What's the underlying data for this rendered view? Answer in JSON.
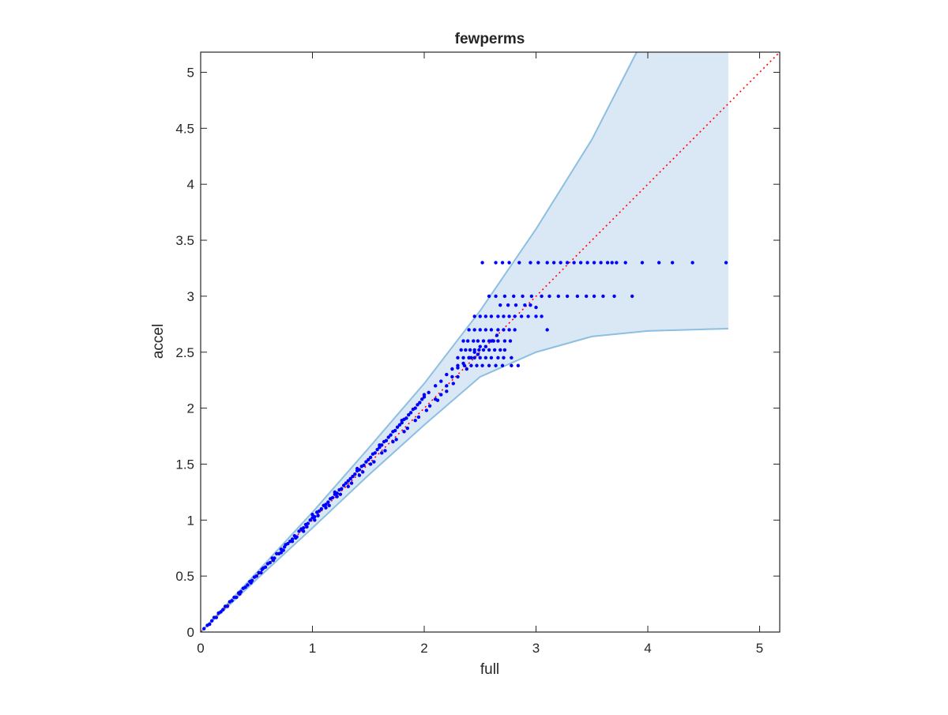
{
  "chart_data": {
    "type": "scatter",
    "title": "fewperms",
    "xlabel": "full",
    "ylabel": "accel",
    "xlim": [
      0,
      5.18
    ],
    "ylim": [
      0,
      5.18
    ],
    "x_ticks": [
      0,
      1,
      2,
      3,
      4,
      5
    ],
    "y_ticks": [
      0,
      0.5,
      1,
      1.5,
      2,
      2.5,
      3,
      3.5,
      4,
      4.5,
      5
    ],
    "x_tick_labels": [
      "0",
      "1",
      "2",
      "3",
      "4",
      "5"
    ],
    "y_tick_labels": [
      "0",
      "0.5",
      "1",
      "1.5",
      "2",
      "2.5",
      "3",
      "3.5",
      "4",
      "4.5",
      "5"
    ],
    "grid": false,
    "colors": {
      "points": "#0000ff",
      "band_fill": "#d9e8f4",
      "band_edge": "#8cbfe0",
      "reference_line": "#ff0000",
      "axes": "#262626"
    },
    "band": {
      "upper": [
        [
          0,
          0
        ],
        [
          0.5,
          0.53
        ],
        [
          1,
          1.07
        ],
        [
          1.5,
          1.64
        ],
        [
          2,
          2.22
        ],
        [
          2.5,
          2.87
        ],
        [
          3,
          3.6
        ],
        [
          3.5,
          4.4
        ],
        [
          3.9,
          5.18
        ]
      ],
      "upper_cap_x": 4.72,
      "lower": [
        [
          0,
          0
        ],
        [
          0.5,
          0.47
        ],
        [
          1,
          0.93
        ],
        [
          1.5,
          1.4
        ],
        [
          2,
          1.85
        ],
        [
          2.5,
          2.28
        ],
        [
          3,
          2.5
        ],
        [
          3.5,
          2.64
        ],
        [
          4,
          2.69
        ],
        [
          4.72,
          2.71
        ]
      ]
    },
    "reference_line": {
      "from": [
        0,
        0
      ],
      "to": [
        5.18,
        5.18
      ],
      "style": "dotted"
    },
    "series": [
      {
        "points": [
          [
            0.03,
            0.03
          ],
          [
            0.06,
            0.06
          ],
          [
            0.08,
            0.07
          ],
          [
            0.1,
            0.1
          ],
          [
            0.12,
            0.13
          ],
          [
            0.14,
            0.13
          ],
          [
            0.16,
            0.17
          ],
          [
            0.18,
            0.18
          ],
          [
            0.2,
            0.2
          ],
          [
            0.22,
            0.23
          ],
          [
            0.24,
            0.23
          ],
          [
            0.26,
            0.27
          ],
          [
            0.28,
            0.28
          ],
          [
            0.3,
            0.31
          ],
          [
            0.32,
            0.31
          ],
          [
            0.34,
            0.35
          ],
          [
            0.36,
            0.36
          ],
          [
            0.38,
            0.39
          ],
          [
            0.4,
            0.4
          ],
          [
            0.42,
            0.42
          ],
          [
            0.44,
            0.45
          ],
          [
            0.46,
            0.46
          ],
          [
            0.48,
            0.49
          ],
          [
            0.5,
            0.5
          ],
          [
            0.52,
            0.53
          ],
          [
            0.54,
            0.53
          ],
          [
            0.56,
            0.57
          ],
          [
            0.58,
            0.58
          ],
          [
            0.6,
            0.61
          ],
          [
            0.62,
            0.62
          ],
          [
            0.64,
            0.66
          ],
          [
            0.66,
            0.66
          ],
          [
            0.68,
            0.7
          ],
          [
            0.7,
            0.7
          ],
          [
            0.72,
            0.74
          ],
          [
            0.74,
            0.73
          ],
          [
            0.76,
            0.78
          ],
          [
            0.78,
            0.79
          ],
          [
            0.8,
            0.81
          ],
          [
            0.82,
            0.83
          ],
          [
            0.84,
            0.86
          ],
          [
            0.86,
            0.85
          ],
          [
            0.88,
            0.9
          ],
          [
            0.9,
            0.92
          ],
          [
            0.92,
            0.93
          ],
          [
            0.94,
            0.96
          ],
          [
            0.96,
            0.97
          ],
          [
            0.98,
            1.0
          ],
          [
            1.0,
            1.02
          ],
          [
            1.02,
            1.03
          ],
          [
            1.04,
            1.07
          ],
          [
            1.06,
            1.08
          ],
          [
            1.08,
            1.1
          ],
          [
            1.1,
            1.13
          ],
          [
            1.12,
            1.14
          ],
          [
            1.14,
            1.16
          ],
          [
            1.16,
            1.19
          ],
          [
            1.18,
            1.2
          ],
          [
            1.2,
            1.23
          ],
          [
            1.22,
            1.24
          ],
          [
            1.24,
            1.27
          ],
          [
            1.26,
            1.28
          ],
          [
            1.28,
            1.31
          ],
          [
            1.3,
            1.33
          ],
          [
            1.32,
            1.35
          ],
          [
            1.34,
            1.37
          ],
          [
            1.36,
            1.39
          ],
          [
            1.38,
            1.41
          ],
          [
            1.4,
            1.44
          ],
          [
            1.42,
            1.45
          ],
          [
            1.44,
            1.48
          ],
          [
            1.46,
            1.49
          ],
          [
            1.48,
            1.52
          ],
          [
            1.5,
            1.54
          ],
          [
            1.52,
            1.56
          ],
          [
            1.54,
            1.59
          ],
          [
            1.56,
            1.6
          ],
          [
            1.58,
            1.63
          ],
          [
            1.6,
            1.65
          ],
          [
            1.62,
            1.67
          ],
          [
            1.64,
            1.7
          ],
          [
            1.66,
            1.71
          ],
          [
            1.68,
            1.74
          ],
          [
            1.7,
            1.76
          ],
          [
            1.72,
            1.79
          ],
          [
            1.74,
            1.8
          ],
          [
            1.76,
            1.83
          ],
          [
            1.78,
            1.85
          ],
          [
            1.8,
            1.87
          ],
          [
            1.82,
            1.9
          ],
          [
            1.84,
            1.91
          ],
          [
            1.86,
            1.94
          ],
          [
            1.88,
            1.96
          ],
          [
            1.9,
            1.99
          ],
          [
            1.92,
            2.0
          ],
          [
            1.94,
            2.03
          ],
          [
            1.96,
            2.05
          ],
          [
            1.98,
            2.08
          ],
          [
            2.0,
            2.1
          ],
          [
            2.04,
            2.14
          ],
          [
            0.35,
            0.34
          ],
          [
            0.45,
            0.44
          ],
          [
            0.55,
            0.56
          ],
          [
            0.65,
            0.64
          ],
          [
            0.75,
            0.76
          ],
          [
            0.85,
            0.84
          ],
          [
            0.95,
            0.94
          ],
          [
            1.05,
            1.04
          ],
          [
            1.15,
            1.13
          ],
          [
            1.25,
            1.23
          ],
          [
            1.35,
            1.33
          ],
          [
            1.45,
            1.43
          ],
          [
            1.55,
            1.52
          ],
          [
            1.65,
            1.62
          ],
          [
            1.75,
            1.72
          ],
          [
            1.85,
            1.82
          ],
          [
            1.95,
            1.92
          ],
          [
            2.05,
            2.02
          ],
          [
            2.1,
            2.08
          ],
          [
            2.15,
            2.12
          ],
          [
            0.72,
            0.71
          ],
          [
            0.82,
            0.81
          ],
          [
            0.92,
            0.9
          ],
          [
            1.02,
            1.0
          ],
          [
            1.12,
            1.11
          ],
          [
            1.22,
            1.21
          ],
          [
            1.32,
            1.3
          ],
          [
            1.42,
            1.4
          ],
          [
            1.52,
            1.5
          ],
          [
            1.62,
            1.6
          ],
          [
            1.72,
            1.7
          ],
          [
            1.82,
            1.79
          ],
          [
            1.92,
            1.89
          ],
          [
            2.02,
            1.98
          ],
          [
            2.12,
            2.07
          ],
          [
            2.2,
            2.15
          ],
          [
            1.0,
            1.05
          ],
          [
            1.2,
            1.25
          ],
          [
            1.4,
            1.46
          ],
          [
            1.6,
            1.67
          ],
          [
            1.8,
            1.89
          ],
          [
            2.0,
            2.12
          ],
          [
            2.1,
            2.2
          ],
          [
            2.15,
            2.24
          ],
          [
            2.2,
            2.3
          ],
          [
            2.25,
            2.35
          ],
          [
            2.2,
            2.2
          ],
          [
            2.25,
            2.28
          ],
          [
            2.3,
            2.36
          ],
          [
            2.3,
            2.28
          ],
          [
            2.35,
            2.4
          ],
          [
            2.4,
            2.45
          ],
          [
            2.38,
            2.35
          ],
          [
            2.45,
            2.5
          ],
          [
            2.42,
            2.45
          ],
          [
            2.5,
            2.55
          ],
          [
            2.48,
            2.48
          ],
          [
            2.55,
            2.55
          ],
          [
            2.6,
            2.6
          ],
          [
            2.65,
            2.65
          ],
          [
            2.33,
            2.52
          ],
          [
            2.37,
            2.52
          ],
          [
            2.41,
            2.52
          ],
          [
            2.45,
            2.52
          ],
          [
            2.49,
            2.52
          ],
          [
            2.53,
            2.52
          ],
          [
            2.58,
            2.52
          ],
          [
            2.63,
            2.52
          ],
          [
            2.68,
            2.52
          ],
          [
            2.72,
            2.52
          ],
          [
            2.35,
            2.6
          ],
          [
            2.39,
            2.6
          ],
          [
            2.44,
            2.6
          ],
          [
            2.48,
            2.6
          ],
          [
            2.53,
            2.6
          ],
          [
            2.58,
            2.6
          ],
          [
            2.62,
            2.6
          ],
          [
            2.66,
            2.6
          ],
          [
            2.72,
            2.6
          ],
          [
            2.77,
            2.6
          ],
          [
            2.4,
            2.7
          ],
          [
            2.45,
            2.7
          ],
          [
            2.5,
            2.7
          ],
          [
            2.55,
            2.7
          ],
          [
            2.6,
            2.7
          ],
          [
            2.66,
            2.7
          ],
          [
            2.71,
            2.7
          ],
          [
            2.76,
            2.7
          ],
          [
            2.81,
            2.7
          ],
          [
            3.1,
            2.7
          ],
          [
            2.3,
            2.45
          ],
          [
            2.35,
            2.45
          ],
          [
            2.4,
            2.45
          ],
          [
            2.45,
            2.45
          ],
          [
            2.5,
            2.45
          ],
          [
            2.55,
            2.45
          ],
          [
            2.6,
            2.45
          ],
          [
            2.66,
            2.45
          ],
          [
            2.71,
            2.45
          ],
          [
            2.78,
            2.45
          ],
          [
            2.3,
            2.38
          ],
          [
            2.36,
            2.38
          ],
          [
            2.42,
            2.38
          ],
          [
            2.47,
            2.38
          ],
          [
            2.52,
            2.38
          ],
          [
            2.58,
            2.38
          ],
          [
            2.64,
            2.38
          ],
          [
            2.7,
            2.38
          ],
          [
            2.78,
            2.38
          ],
          [
            2.84,
            2.38
          ],
          [
            2.45,
            2.82
          ],
          [
            2.5,
            2.82
          ],
          [
            2.55,
            2.82
          ],
          [
            2.6,
            2.82
          ],
          [
            2.66,
            2.82
          ],
          [
            2.71,
            2.82
          ],
          [
            2.76,
            2.82
          ],
          [
            2.81,
            2.82
          ],
          [
            2.87,
            2.82
          ],
          [
            2.93,
            2.82
          ],
          [
            3.0,
            2.82
          ],
          [
            3.05,
            2.82
          ],
          [
            2.58,
            3.0
          ],
          [
            2.64,
            3.0
          ],
          [
            2.72,
            3.0
          ],
          [
            2.8,
            3.0
          ],
          [
            2.88,
            3.0
          ],
          [
            2.96,
            3.0
          ],
          [
            3.05,
            3.0
          ],
          [
            3.12,
            3.0
          ],
          [
            3.2,
            3.0
          ],
          [
            3.28,
            3.0
          ],
          [
            3.37,
            3.0
          ],
          [
            3.45,
            3.0
          ],
          [
            3.52,
            3.0
          ],
          [
            3.6,
            3.0
          ],
          [
            3.7,
            3.0
          ],
          [
            3.86,
            3.0
          ],
          [
            2.52,
            3.3
          ],
          [
            2.64,
            3.3
          ],
          [
            2.7,
            3.3
          ],
          [
            2.76,
            3.3
          ],
          [
            2.85,
            3.3
          ],
          [
            2.95,
            3.3
          ],
          [
            3.02,
            3.3
          ],
          [
            3.1,
            3.3
          ],
          [
            3.16,
            3.3
          ],
          [
            3.22,
            3.3
          ],
          [
            3.28,
            3.3
          ],
          [
            3.34,
            3.3
          ],
          [
            3.4,
            3.3
          ],
          [
            3.46,
            3.3
          ],
          [
            3.52,
            3.3
          ],
          [
            3.58,
            3.3
          ],
          [
            3.64,
            3.3
          ],
          [
            3.68,
            3.3
          ],
          [
            3.72,
            3.3
          ],
          [
            3.8,
            3.3
          ],
          [
            3.95,
            3.3
          ],
          [
            4.1,
            3.3
          ],
          [
            4.22,
            3.3
          ],
          [
            4.4,
            3.3
          ],
          [
            4.7,
            3.3
          ],
          [
            3.0,
            2.9
          ],
          [
            2.9,
            2.92
          ],
          [
            2.95,
            2.92
          ],
          [
            2.68,
            2.92
          ],
          [
            2.75,
            2.92
          ],
          [
            2.82,
            2.92
          ],
          [
            2.26,
            2.22
          ]
        ]
      }
    ]
  }
}
